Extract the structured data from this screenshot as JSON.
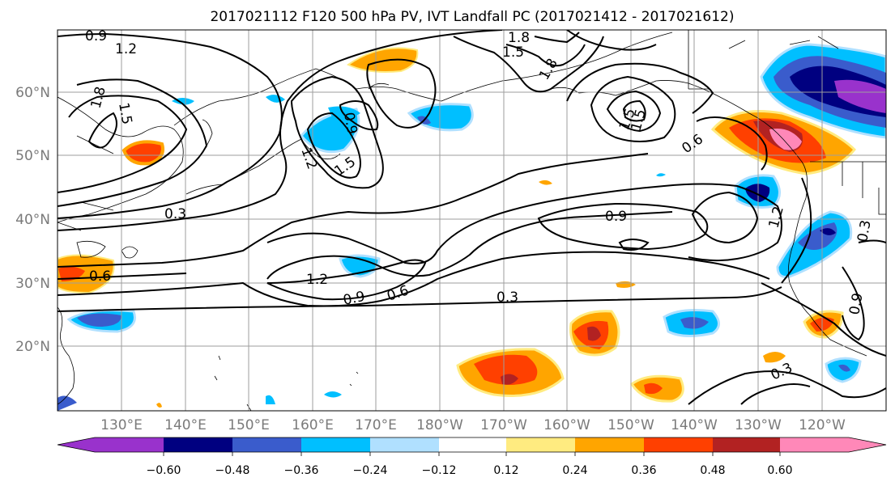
{
  "title": "2017021112 F120 500 hPa PV, IVT Landfall PC (2017021412 - 2017021612)",
  "lat_ticks": [
    "60°N",
    "50°N",
    "40°N",
    "30°N",
    "20°N"
  ],
  "lon_ticks": [
    "130°E",
    "140°E",
    "150°E",
    "160°E",
    "170°E",
    "180°W",
    "170°W",
    "160°W",
    "150°W",
    "140°W",
    "130°W",
    "120°W"
  ],
  "contour_labels": [
    "0.9",
    "1.2",
    "1.5",
    "1.8",
    "1.5",
    "1.8",
    "1.5",
    "0.6",
    "0.3",
    "0.6",
    "1.2",
    "0.9",
    "0.6",
    "0.3",
    "0.9",
    "1.2",
    "0.9",
    "0.3",
    "0.3",
    "0.9",
    "1.2",
    "1.5",
    "1.5",
    "1.8"
  ],
  "colorbar": {
    "ticks": [
      "−0.60",
      "−0.48",
      "−0.36",
      "−0.24",
      "−0.12",
      "0.12",
      "0.24",
      "0.36",
      "0.48",
      "0.60"
    ],
    "colors": [
      "#9932cc",
      "#000080",
      "#3a5ccc",
      "#00bfff",
      "#b0e0ff",
      "#ffffff",
      "#ffeb80",
      "#ffa500",
      "#ff4000",
      "#b22222",
      "#ff88b8"
    ]
  }
}
